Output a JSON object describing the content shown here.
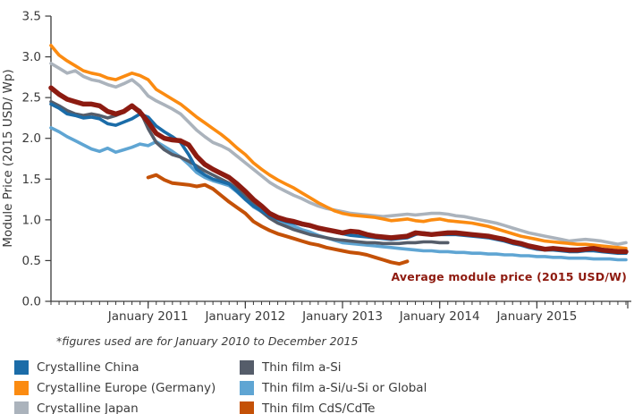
{
  "footnote": "*figures used are for January 2010 to December 2015",
  "annotation": {
    "text": "Average module price (2015 USD/W)",
    "color": "#8E1A0F"
  },
  "axis_color": "#3a3a3a",
  "legend": {
    "items": [
      {
        "label": "Crystalline China",
        "color": "#1B6CA8"
      },
      {
        "label": "Crystalline Europe (Germany)",
        "color": "#FB8B11"
      },
      {
        "label": "Crystalline Japan",
        "color": "#ABB3BC"
      },
      {
        "label": "Thin film a-Si",
        "color": "#555D6A"
      },
      {
        "label": "Thin film a-Si/u-Si or Global",
        "color": "#5FA5D3"
      },
      {
        "label": "Thin film CdS/CdTe",
        "color": "#C45107"
      }
    ]
  },
  "chart_data": {
    "type": "line",
    "title": "",
    "ylabel": "Module Price (2015 USD/ Wp)",
    "xlabel": "",
    "x_unit": "month",
    "x_start": "January 2010",
    "x_end": "December 2015",
    "months_total": 72,
    "x_major_tick_months": [
      12,
      24,
      36,
      48,
      60
    ],
    "x_major_tick_labels": [
      "January 2011",
      "January 2012",
      "January 2013",
      "January 2014",
      "January 2015"
    ],
    "ylim": [
      0,
      3.5
    ],
    "ytick_labels": [
      "0.0",
      "0.5",
      "1.0",
      "1.5",
      "2.0",
      "2.5",
      "3.0",
      "3.5"
    ],
    "grid": false,
    "legend_position": "bottom",
    "series": [
      {
        "id": "thin-film-a-si-u-si",
        "name": "Thin film a-Si/u-Si or Global",
        "color": "#5FA5D3",
        "width": 3.6,
        "start_month": 0,
        "values": [
          2.13,
          2.08,
          2.02,
          1.97,
          1.92,
          1.87,
          1.84,
          1.88,
          1.83,
          1.86,
          1.89,
          1.93,
          1.91,
          1.96,
          1.9,
          1.84,
          1.77,
          1.68,
          1.58,
          1.52,
          1.48,
          1.45,
          1.42,
          1.34,
          1.25,
          1.16,
          1.1,
          1.05,
          1.0,
          0.96,
          0.92,
          0.88,
          0.85,
          0.81,
          0.78,
          0.75,
          0.72,
          0.71,
          0.7,
          0.69,
          0.68,
          0.67,
          0.66,
          0.65,
          0.64,
          0.63,
          0.62,
          0.62,
          0.61,
          0.61,
          0.6,
          0.6,
          0.59,
          0.59,
          0.58,
          0.58,
          0.57,
          0.57,
          0.56,
          0.56,
          0.55,
          0.55,
          0.54,
          0.54,
          0.53,
          0.53,
          0.53,
          0.52,
          0.52,
          0.52,
          0.51,
          0.51
        ]
      },
      {
        "id": "thin-film-a-si",
        "name": "Thin film a-Si",
        "color": "#555D6A",
        "width": 3.6,
        "start_month": 0,
        "values": [
          2.45,
          2.4,
          2.34,
          2.3,
          2.28,
          2.3,
          2.28,
          2.25,
          2.28,
          2.32,
          2.4,
          2.34,
          2.12,
          1.95,
          1.86,
          1.8,
          1.77,
          1.72,
          1.66,
          1.6,
          1.55,
          1.5,
          1.45,
          1.38,
          1.3,
          1.2,
          1.1,
          1.02,
          0.96,
          0.92,
          0.88,
          0.85,
          0.82,
          0.8,
          0.78,
          0.76,
          0.75,
          0.74,
          0.73,
          0.72,
          0.72,
          0.71,
          0.71,
          0.71,
          0.72,
          0.72,
          0.73,
          0.73,
          0.72,
          0.72
        ]
      },
      {
        "id": "crystalline-china",
        "name": "Crystalline China",
        "color": "#1B6CA8",
        "width": 3.6,
        "start_month": 0,
        "values": [
          2.42,
          2.37,
          2.3,
          2.28,
          2.25,
          2.26,
          2.24,
          2.18,
          2.16,
          2.2,
          2.24,
          2.3,
          2.26,
          2.15,
          2.08,
          2.02,
          1.95,
          1.8,
          1.62,
          1.55,
          1.5,
          1.47,
          1.44,
          1.35,
          1.25,
          1.17,
          1.11,
          1.05,
          1.01,
          0.98,
          0.96,
          0.94,
          0.92,
          0.9,
          0.88,
          0.85,
          0.83,
          0.81,
          0.8,
          0.79,
          0.78,
          0.77,
          0.76,
          0.77,
          0.78,
          0.82,
          0.84,
          0.83,
          0.82,
          0.82,
          0.82,
          0.81,
          0.8,
          0.79,
          0.78,
          0.76,
          0.74,
          0.71,
          0.69,
          0.66,
          0.64,
          0.63,
          0.63,
          0.62,
          0.61,
          0.61,
          0.62,
          0.62,
          0.61,
          0.6,
          0.59,
          0.59
        ]
      },
      {
        "id": "crystalline-japan",
        "name": "Crystalline Japan",
        "color": "#ABB3BC",
        "width": 3.6,
        "start_month": 0,
        "values": [
          2.92,
          2.86,
          2.8,
          2.83,
          2.76,
          2.72,
          2.7,
          2.66,
          2.63,
          2.67,
          2.72,
          2.64,
          2.52,
          2.46,
          2.41,
          2.36,
          2.3,
          2.2,
          2.1,
          2.02,
          1.95,
          1.91,
          1.86,
          1.78,
          1.7,
          1.62,
          1.54,
          1.46,
          1.4,
          1.35,
          1.3,
          1.26,
          1.21,
          1.17,
          1.14,
          1.12,
          1.1,
          1.08,
          1.07,
          1.06,
          1.05,
          1.04,
          1.05,
          1.06,
          1.07,
          1.06,
          1.07,
          1.08,
          1.08,
          1.07,
          1.05,
          1.04,
          1.02,
          1.0,
          0.98,
          0.96,
          0.93,
          0.9,
          0.87,
          0.84,
          0.82,
          0.8,
          0.78,
          0.76,
          0.74,
          0.75,
          0.76,
          0.75,
          0.74,
          0.72,
          0.7,
          0.72
        ]
      },
      {
        "id": "crystalline-europe",
        "name": "Crystalline Europe (Germany)",
        "color": "#FB8B11",
        "width": 3.6,
        "start_month": 0,
        "values": [
          3.14,
          3.02,
          2.95,
          2.89,
          2.83,
          2.8,
          2.78,
          2.74,
          2.72,
          2.76,
          2.8,
          2.77,
          2.72,
          2.6,
          2.54,
          2.48,
          2.42,
          2.34,
          2.26,
          2.19,
          2.12,
          2.05,
          1.97,
          1.88,
          1.8,
          1.7,
          1.62,
          1.55,
          1.49,
          1.44,
          1.39,
          1.33,
          1.27,
          1.21,
          1.16,
          1.11,
          1.08,
          1.06,
          1.05,
          1.04,
          1.03,
          1.01,
          0.99,
          1.0,
          1.01,
          0.99,
          0.98,
          1.0,
          1.01,
          0.99,
          0.98,
          0.97,
          0.96,
          0.94,
          0.92,
          0.89,
          0.86,
          0.83,
          0.8,
          0.78,
          0.76,
          0.74,
          0.73,
          0.72,
          0.71,
          0.7,
          0.7,
          0.69,
          0.68,
          0.67,
          0.66,
          0.65
        ]
      },
      {
        "id": "thin-film-cds-cdte",
        "name": "Thin film CdS/CdTe",
        "color": "#C45107",
        "width": 4,
        "start_month": 12,
        "values": [
          1.52,
          1.55,
          1.49,
          1.45,
          1.44,
          1.43,
          1.41,
          1.43,
          1.38,
          1.3,
          1.22,
          1.15,
          1.08,
          0.98,
          0.92,
          0.87,
          0.83,
          0.8,
          0.77,
          0.74,
          0.71,
          0.69,
          0.66,
          0.64,
          0.62,
          0.6,
          0.59,
          0.57,
          0.54,
          0.51,
          0.48,
          0.46,
          0.49
        ]
      },
      {
        "id": "average-module-price",
        "name": "Average module price (2015 USD/W)",
        "color": "#8C1B11",
        "width": 5.5,
        "start_month": 0,
        "values": [
          2.62,
          2.54,
          2.48,
          2.45,
          2.42,
          2.42,
          2.4,
          2.33,
          2.3,
          2.33,
          2.4,
          2.32,
          2.2,
          2.06,
          2.0,
          1.98,
          1.97,
          1.92,
          1.78,
          1.68,
          1.62,
          1.57,
          1.52,
          1.44,
          1.35,
          1.25,
          1.17,
          1.08,
          1.03,
          1.0,
          0.98,
          0.95,
          0.93,
          0.9,
          0.88,
          0.86,
          0.84,
          0.86,
          0.85,
          0.82,
          0.8,
          0.79,
          0.78,
          0.79,
          0.8,
          0.84,
          0.83,
          0.82,
          0.83,
          0.84,
          0.84,
          0.83,
          0.82,
          0.81,
          0.8,
          0.78,
          0.76,
          0.73,
          0.71,
          0.68,
          0.66,
          0.64,
          0.65,
          0.64,
          0.63,
          0.63,
          0.64,
          0.65,
          0.63,
          0.62,
          0.61,
          0.61
        ]
      }
    ]
  }
}
